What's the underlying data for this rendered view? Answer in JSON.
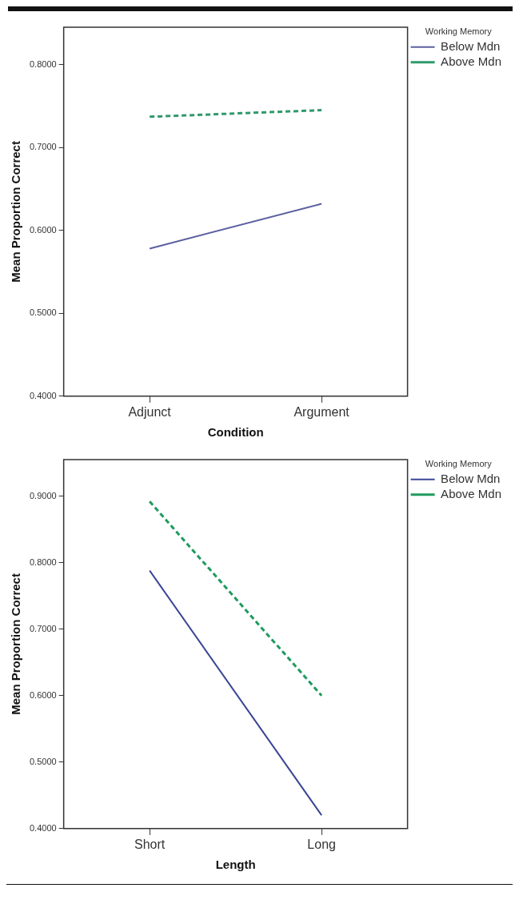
{
  "chart_data": [
    {
      "type": "line",
      "xlabel": "Condition",
      "ylabel": "Mean Proportion Correct",
      "legend_title": "Working Memory",
      "categories": [
        "Adjunct",
        "Argument"
      ],
      "series": [
        {
          "name": "Below Mdn",
          "color": "#5a5fa0",
          "values": [
            0.578,
            0.632
          ],
          "line_style": "solid"
        },
        {
          "name": "Above Mdn",
          "color": "#2e9a6a",
          "values": [
            0.737,
            0.745
          ],
          "line_style": "dashed"
        }
      ],
      "ylim": [
        0.4,
        0.845
      ],
      "yticks": [
        {
          "value": 0.4,
          "label": "0.4000"
        },
        {
          "value": 0.5,
          "label": "0.5000"
        },
        {
          "value": 0.6,
          "label": "0.6000"
        },
        {
          "value": 0.7,
          "label": "0.7000"
        },
        {
          "value": 0.8,
          "label": "0.8000"
        }
      ],
      "grid": false,
      "legend": "top right",
      "marker": "none"
    },
    {
      "type": "line",
      "xlabel": "Length",
      "ylabel": "Mean Proportion Correct",
      "legend_title": "Working Memory",
      "categories": [
        "Short",
        "Long"
      ],
      "series": [
        {
          "name": "Below Mdn",
          "color": "#3a4595",
          "values": [
            0.788,
            0.42
          ],
          "line_style": "solid"
        },
        {
          "name": "Above Mdn",
          "color": "#1f9a5e",
          "values": [
            0.892,
            0.6
          ],
          "line_style": "dashed"
        }
      ],
      "ylim": [
        0.4,
        0.955
      ],
      "yticks": [
        {
          "value": 0.4,
          "label": "0.4000"
        },
        {
          "value": 0.5,
          "label": "0.5000"
        },
        {
          "value": 0.6,
          "label": "0.6000"
        },
        {
          "value": 0.7,
          "label": "0.7000"
        },
        {
          "value": 0.8,
          "label": "0.8000"
        },
        {
          "value": 0.9,
          "label": "0.9000"
        }
      ],
      "grid": false,
      "legend": "top right",
      "marker": "none"
    }
  ]
}
